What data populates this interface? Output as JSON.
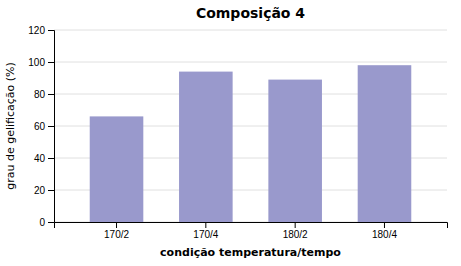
{
  "chart_data": {
    "type": "bar",
    "title": "Composição 4",
    "categories": [
      "170/2",
      "170/4",
      "180/2",
      "180/4"
    ],
    "values": [
      66,
      94,
      89,
      98
    ],
    "color": "#9999cc",
    "xlabel": "condição temperatura/tempo",
    "ylabel": "grau de gelificação (%)",
    "ylim": [
      0,
      120
    ],
    "yticks": [
      0,
      20,
      40,
      60,
      80,
      100,
      120
    ],
    "grid": true
  }
}
